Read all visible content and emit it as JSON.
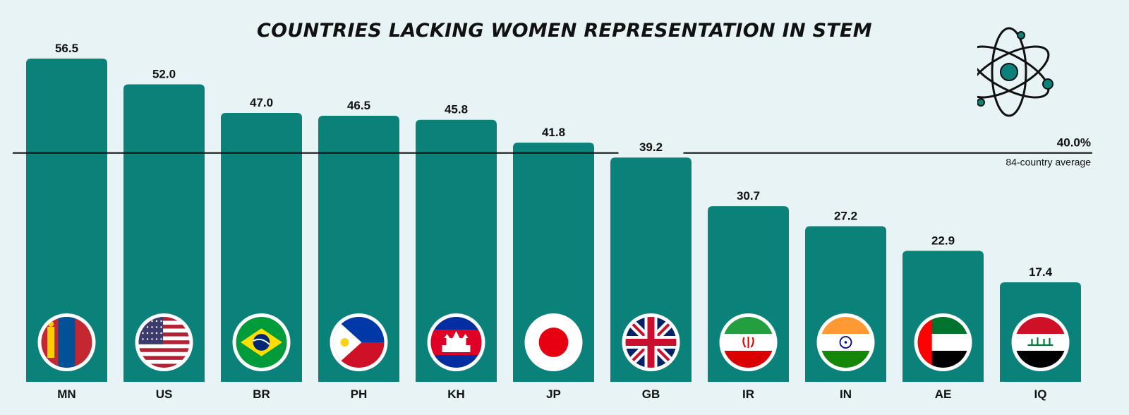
{
  "colors": {
    "background": "#e7f3f4",
    "bar": "#0b8279",
    "text": "#111111"
  },
  "chart_data": {
    "type": "bar",
    "title": "COUNTRIES LACKING WOMEN REPRESENTATION IN STEM",
    "categories": [
      "MN",
      "US",
      "BR",
      "PH",
      "KH",
      "JP",
      "GB",
      "IR",
      "IN",
      "AE",
      "IQ"
    ],
    "values": [
      56.5,
      52.0,
      47.0,
      46.5,
      45.8,
      41.8,
      39.2,
      30.7,
      27.2,
      22.9,
      17.4
    ],
    "value_labels": [
      "56.5",
      "52.0",
      "47.0",
      "46.5",
      "45.8",
      "41.8",
      "39.2",
      "30.7",
      "27.2",
      "22.9",
      "17.4"
    ],
    "flag_icons": [
      "mongolia-flag-icon",
      "usa-flag-icon",
      "brazil-flag-icon",
      "philippines-flag-icon",
      "cambodia-flag-icon",
      "japan-flag-icon",
      "uk-flag-icon",
      "iran-flag-icon",
      "india-flag-icon",
      "uae-flag-icon",
      "iraq-flag-icon"
    ],
    "reference_line": {
      "value": 40.0,
      "label": "40.0%",
      "sublabel": "84-country average"
    },
    "xlabel": "",
    "ylabel": "",
    "ylim": [
      0,
      61.8
    ],
    "grid": false,
    "legend": "none"
  },
  "decor": {
    "atom_icon": "atom-icon"
  }
}
